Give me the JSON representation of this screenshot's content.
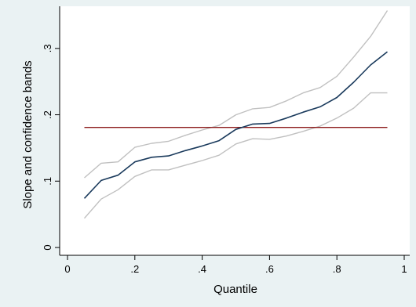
{
  "chart_data": {
    "type": "line",
    "title": "",
    "xlabel": "Quantile",
    "ylabel": "Slope and confidence bands",
    "xlim": [
      0,
      1
    ],
    "ylim": [
      0,
      0.36
    ],
    "grid": false,
    "legend": "none",
    "x_ticks": [
      {
        "value": 0,
        "label": "0"
      },
      {
        "value": 0.2,
        "label": ".2"
      },
      {
        "value": 0.4,
        "label": ".4"
      },
      {
        "value": 0.6,
        "label": ".6"
      },
      {
        "value": 0.8,
        "label": ".8"
      },
      {
        "value": 1,
        "label": "1"
      }
    ],
    "y_ticks": [
      {
        "value": 0,
        "label": "0"
      },
      {
        "value": 0.1,
        "label": ".1"
      },
      {
        "value": 0.2,
        "label": ".2"
      },
      {
        "value": 0.3,
        "label": ".3"
      }
    ],
    "x": [
      0.05,
      0.1,
      0.15,
      0.2,
      0.25,
      0.3,
      0.35,
      0.4,
      0.45,
      0.5,
      0.55,
      0.6,
      0.65,
      0.7,
      0.75,
      0.8,
      0.85,
      0.9,
      0.95
    ],
    "series": [
      {
        "role": "upper-band",
        "color": "#c0c0c0",
        "values": [
          0.105,
          0.127,
          0.129,
          0.151,
          0.157,
          0.16,
          0.169,
          0.177,
          0.184,
          0.2,
          0.209,
          0.211,
          0.221,
          0.233,
          0.241,
          0.258,
          0.287,
          0.318,
          0.357
        ]
      },
      {
        "role": "estimate",
        "color": "#1a3a5c",
        "values": [
          0.074,
          0.101,
          0.109,
          0.129,
          0.136,
          0.138,
          0.146,
          0.153,
          0.161,
          0.178,
          0.186,
          0.187,
          0.195,
          0.204,
          0.212,
          0.226,
          0.249,
          0.275,
          0.295
        ]
      },
      {
        "role": "lower-band",
        "color": "#c0c0c0",
        "values": [
          0.044,
          0.073,
          0.087,
          0.107,
          0.117,
          0.117,
          0.124,
          0.131,
          0.139,
          0.156,
          0.164,
          0.163,
          0.168,
          0.175,
          0.183,
          0.195,
          0.21,
          0.233,
          0.233
        ]
      },
      {
        "role": "reference-line",
        "color": "#8b1a1a",
        "values": [
          0.181,
          0.181,
          0.181,
          0.181,
          0.181,
          0.181,
          0.181,
          0.181,
          0.181,
          0.181,
          0.181,
          0.181,
          0.181,
          0.181,
          0.181,
          0.181,
          0.181,
          0.181,
          0.181
        ]
      }
    ]
  },
  "colors": {
    "outer_background": "#eaf2f3",
    "plot_background": "#ffffff",
    "axis": "#000000"
  }
}
